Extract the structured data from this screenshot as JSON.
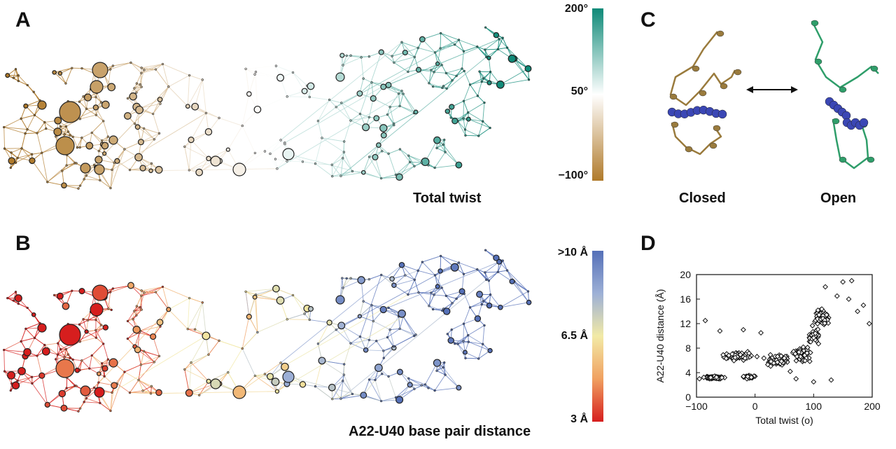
{
  "panels": {
    "a": {
      "label": "A",
      "title": "Total twist",
      "colorbar": {
        "top": "200°",
        "mid": "50°",
        "bottom": "−100°",
        "colors": [
          "#0e8a78",
          "#ffffff",
          "#b07a2a"
        ]
      }
    },
    "b": {
      "label": "B",
      "title": "A22-U40 base pair distance",
      "colorbar": {
        "top": ">10 Å",
        "mid": "6.5 Å",
        "bottom": "3 Å",
        "colors": [
          "#5570b8",
          "#9db0d6",
          "#f2eaa6",
          "#f0a060",
          "#d61e1e"
        ]
      }
    },
    "c": {
      "label": "C",
      "states": [
        "Closed",
        "Open"
      ],
      "colors": {
        "closed": "#9a7b3d",
        "open": "#2f9e6a",
        "bases": "#3b47b5"
      }
    },
    "d": {
      "label": "D"
    }
  },
  "chart_data": {
    "type": "scatter",
    "xlabel": "Total twist (o)",
    "ylabel": "A22-U40 distance (Å)",
    "xlim": [
      -100,
      200
    ],
    "ylim": [
      0,
      20
    ],
    "xticks": [
      "−100",
      "0",
      "100",
      "200"
    ],
    "yticks": [
      "0",
      "4",
      "8",
      "12",
      "16",
      "20"
    ],
    "marker": "diamond",
    "grid": false,
    "clusters": [
      {
        "x_center": -70,
        "y_center": 3.2,
        "x_spread": 25,
        "y_spread": 0.3,
        "n": 90
      },
      {
        "x_center": -10,
        "y_center": 3.3,
        "x_spread": 15,
        "y_spread": 0.4,
        "n": 40
      },
      {
        "x_center": -30,
        "y_center": 6.8,
        "x_spread": 40,
        "y_spread": 1.2,
        "n": 70
      },
      {
        "x_center": 40,
        "y_center": 6.0,
        "x_spread": 35,
        "y_spread": 1.5,
        "n": 80
      },
      {
        "x_center": 80,
        "y_center": 7.0,
        "x_spread": 20,
        "y_spread": 2.0,
        "n": 60
      },
      {
        "x_center": 115,
        "y_center": 13.0,
        "x_spread": 20,
        "y_spread": 2.0,
        "n": 110
      },
      {
        "x_center": 100,
        "y_center": 10.0,
        "x_spread": 15,
        "y_spread": 2.0,
        "n": 40
      }
    ],
    "points": [
      [
        -95,
        3.0
      ],
      [
        -85,
        12.5
      ],
      [
        -60,
        10.8
      ],
      [
        -20,
        11.0
      ],
      [
        10,
        10.5
      ],
      [
        60,
        4.2
      ],
      [
        100,
        2.5
      ],
      [
        130,
        2.8
      ],
      [
        150,
        18.8
      ],
      [
        165,
        19.0
      ],
      [
        175,
        14.0
      ],
      [
        195,
        12.0
      ],
      [
        185,
        15.0
      ],
      [
        140,
        16.5
      ],
      [
        160,
        16.0
      ],
      [
        70,
        3.0
      ],
      [
        120,
        18.0
      ]
    ]
  }
}
